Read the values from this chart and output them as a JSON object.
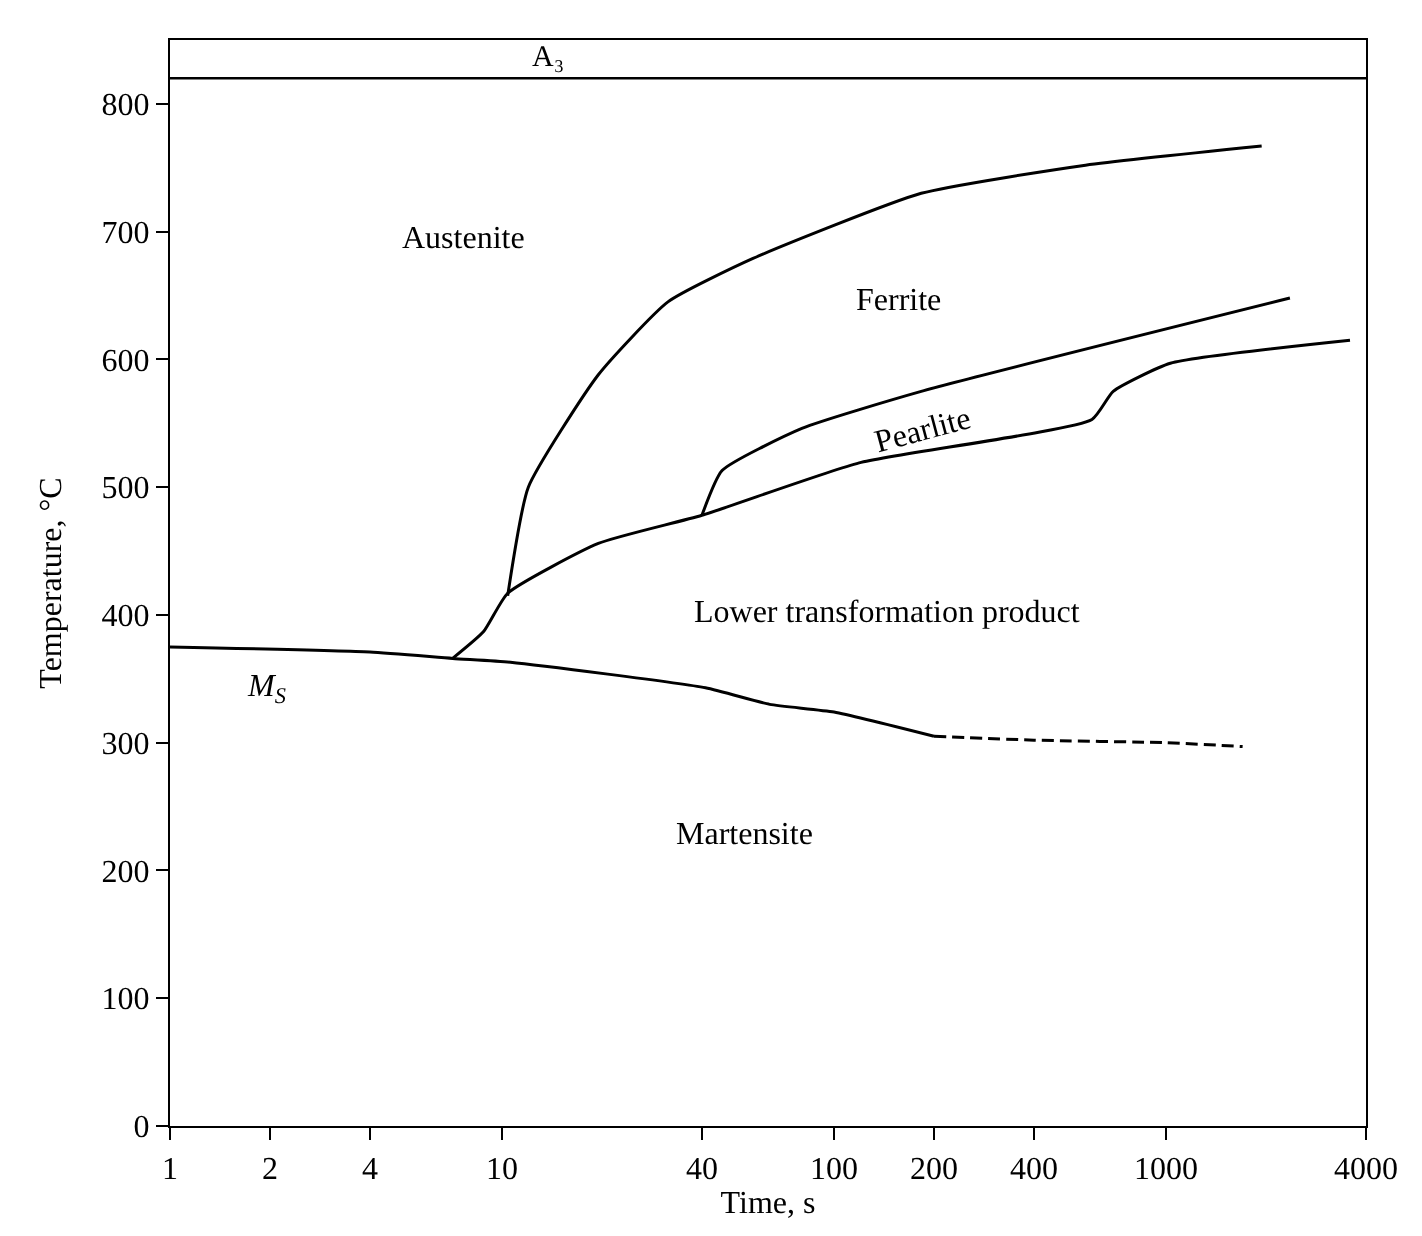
{
  "chart_data": {
    "type": "line",
    "xlabel": "Time, s",
    "ylabel": "Temperature, °C",
    "log": "x",
    "xlim": [
      1,
      4000
    ],
    "xticks": [
      1,
      2,
      4,
      10,
      40,
      100,
      200,
      400,
      1000,
      4000
    ],
    "ylim": [
      0,
      850
    ],
    "yticks": [
      0,
      100,
      200,
      300,
      400,
      500,
      600,
      700,
      800
    ],
    "series": [
      {
        "color": "#000000",
        "line_style": "solid",
        "x": [
          1,
          4,
          7.1,
          10.6,
          41,
          64,
          100,
          200
        ],
        "values": [
          375,
          371,
          366,
          363,
          343,
          330,
          324,
          305
        ]
      },
      {
        "color": "#000000",
        "line_style": "dashed",
        "x": [
          200,
          400,
          1000,
          1700
        ],
        "values": [
          305,
          302,
          300,
          297
        ]
      },
      {
        "color": "#000000",
        "line_style": "solid",
        "x": [
          7.1,
          8.8,
          10.4,
          19.5,
          40,
          119,
          598,
          693,
          1030,
          3580
        ],
        "values": [
          366,
          387,
          417,
          456,
          478,
          519,
          553,
          575,
          597,
          615
        ]
      },
      {
        "color": "#000000",
        "line_style": "solid",
        "x": [
          10.4,
          12,
          19.5,
          31.6,
          57,
          183,
          572,
          1940
        ],
        "values": [
          415,
          500,
          588,
          645,
          679,
          730,
          752,
          767
        ]
      },
      {
        "color": "#000000",
        "line_style": "solid",
        "x": [
          40,
          46,
          80,
          183,
          2360
        ],
        "values": [
          478,
          513,
          546,
          575,
          648
        ]
      }
    ],
    "ref_lines": [
      {
        "axis": "y",
        "value": 820,
        "label": "A₃",
        "color": "#000000",
        "line_style": "solid"
      }
    ],
    "annotations": [
      "Austenite",
      "Ferrite",
      "Pearlite",
      "Lower transformation product",
      "Martensite",
      "M$_{S}$"
    ]
  }
}
